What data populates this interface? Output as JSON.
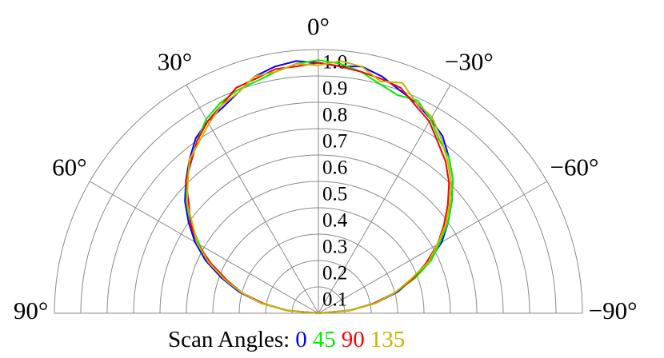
{
  "chart_data": {
    "type": "polar",
    "legend_title": "Scan Angles:",
    "theta": [
      90,
      85,
      80,
      75,
      70,
      65,
      60,
      55,
      50,
      45,
      40,
      35,
      30,
      25,
      20,
      15,
      10,
      5,
      0,
      -5,
      -10,
      -15,
      -20,
      -25,
      -30,
      -35,
      -40,
      -45,
      -50,
      -55,
      -60,
      -65,
      -70,
      -75,
      -80,
      -85,
      -90
    ],
    "series": [
      {
        "name": "0",
        "color": "#0000ff",
        "values": [
          0,
          0.12,
          0.22,
          0.31,
          0.39,
          0.47,
          0.54,
          0.6,
          0.66,
          0.71,
          0.76,
          0.81,
          0.84,
          0.86,
          0.89,
          0.93,
          0.95,
          0.96,
          0.95,
          0.94,
          0.95,
          0.93,
          0.9,
          0.88,
          0.85,
          0.82,
          0.77,
          0.72,
          0.66,
          0.6,
          0.54,
          0.46,
          0.38,
          0.31,
          0.22,
          0.12,
          0
        ]
      },
      {
        "name": "45",
        "color": "#00ee00",
        "values": [
          0,
          0.12,
          0.22,
          0.3,
          0.38,
          0.46,
          0.52,
          0.59,
          0.65,
          0.71,
          0.75,
          0.8,
          0.85,
          0.88,
          0.9,
          0.91,
          0.93,
          0.95,
          0.96,
          0.95,
          0.93,
          0.9,
          0.88,
          0.89,
          0.85,
          0.8,
          0.77,
          0.72,
          0.66,
          0.6,
          0.53,
          0.47,
          0.39,
          0.3,
          0.22,
          0.12,
          0
        ]
      },
      {
        "name": "90",
        "color": "#ff0000",
        "values": [
          0,
          0.12,
          0.21,
          0.3,
          0.37,
          0.45,
          0.53,
          0.59,
          0.64,
          0.71,
          0.75,
          0.8,
          0.84,
          0.87,
          0.91,
          0.92,
          0.94,
          0.94,
          0.95,
          0.94,
          0.93,
          0.92,
          0.91,
          0.87,
          0.84,
          0.79,
          0.75,
          0.7,
          0.64,
          0.58,
          0.52,
          0.45,
          0.38,
          0.3,
          0.21,
          0.12,
          0
        ]
      },
      {
        "name": "135",
        "color": "#c8b400",
        "values": [
          0,
          0.12,
          0.22,
          0.3,
          0.38,
          0.46,
          0.53,
          0.58,
          0.65,
          0.7,
          0.76,
          0.79,
          0.83,
          0.87,
          0.89,
          0.93,
          0.93,
          0.95,
          0.94,
          0.96,
          0.95,
          0.91,
          0.93,
          0.88,
          0.86,
          0.81,
          0.76,
          0.71,
          0.65,
          0.59,
          0.52,
          0.46,
          0.37,
          0.3,
          0.22,
          0.12,
          0
        ]
      }
    ],
    "rlim": [
      0,
      1
    ],
    "rticks": [
      0.1,
      0.2,
      0.3,
      0.4,
      0.5,
      0.6,
      0.7,
      0.8,
      0.9,
      {
        "value": 1,
        "label": "1.0"
      }
    ],
    "thetaticks": [
      {
        "value": 90,
        "label": "90°"
      },
      {
        "value": 60,
        "label": "60°"
      },
      {
        "value": 30,
        "label": "30°"
      },
      {
        "value": 0,
        "label": "0°"
      },
      {
        "value": -30,
        "label": "−30°"
      },
      {
        "value": -60,
        "label": "−60°"
      },
      {
        "value": -90,
        "label": "−90°"
      }
    ]
  }
}
